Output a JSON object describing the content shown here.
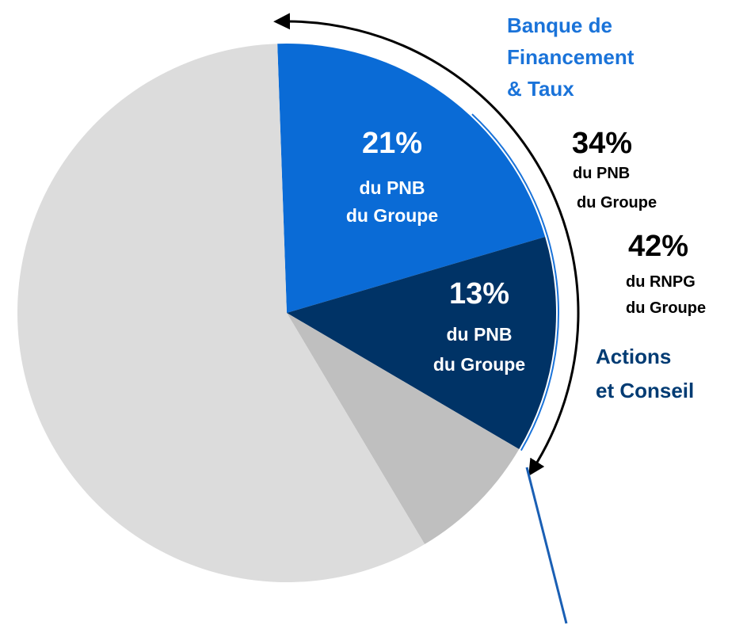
{
  "chart_data": {
    "type": "pie",
    "categories": [
      null,
      null,
      null,
      null
    ],
    "values": [
      21,
      13,
      8,
      58
    ],
    "value_labels": [
      "21%",
      "13%",
      null,
      null
    ],
    "value_sublabels": [
      [
        "du PNB",
        "du Groupe"
      ],
      [
        "du PNB",
        "du Groupe"
      ],
      null,
      null
    ],
    "colors": [
      "#0a6bd6",
      "#003366",
      "#bfbfbf",
      "#dcdcdc"
    ],
    "annotations": [
      {
        "lines": [
          "Banque de",
          "Financement",
          "& Taux"
        ],
        "color": "#1a73d9"
      },
      {
        "lines": [
          "34%",
          "du PNB",
          "du Groupe"
        ],
        "color": "#000000"
      },
      {
        "lines": [
          "42%",
          "du RNPG",
          "du Groupe"
        ],
        "color": "#000000"
      },
      {
        "lines": [
          "Actions",
          "et Conseil"
        ],
        "color": "#003b73"
      }
    ]
  }
}
